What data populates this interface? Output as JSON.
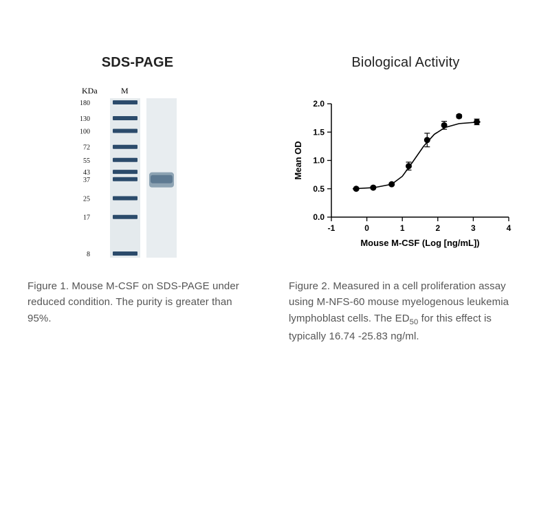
{
  "left": {
    "panel_title": "SDS-PAGE",
    "gel": {
      "kda_header": "KDa",
      "lane_header": "M",
      "markers": [
        180,
        130,
        100,
        72,
        55,
        43,
        37,
        25,
        17,
        8
      ],
      "marker_color": "#2b4b6b",
      "band_y": 37,
      "aspect_width": 170,
      "aspect_height": 260,
      "font_label_pt": 10
    },
    "caption_pre": "Figure 1. Mouse M-CSF on SDS-PAGE under reduced condition. The purity is greater than 95%."
  },
  "right": {
    "panel_title": "Biological Activity",
    "chart": {
      "type": "line",
      "xlabel": "Mouse M-CSF (Log [ng/mL])",
      "ylabel": "Mean OD",
      "xlim": [
        -1,
        4
      ],
      "ylim": [
        0.0,
        2.0
      ],
      "xtick_step": 1,
      "ytick_step": 0.5,
      "tick_font_pt": 12,
      "label_font_pt": 13,
      "label_font_weight": "bold",
      "line_color": "#000000",
      "marker_color": "#000000",
      "marker_size": 4.5,
      "line_width": 1.6,
      "background_color": "#ffffff",
      "axis_color": "#000000",
      "points": [
        {
          "x": -0.3,
          "y": 0.5,
          "err": 0.02
        },
        {
          "x": 0.18,
          "y": 0.52,
          "err": 0.02
        },
        {
          "x": 0.7,
          "y": 0.58,
          "err": 0.02
        },
        {
          "x": 1.18,
          "y": 0.9,
          "err": 0.07
        },
        {
          "x": 1.7,
          "y": 1.36,
          "err": 0.12
        },
        {
          "x": 2.18,
          "y": 1.62,
          "err": 0.07
        },
        {
          "x": 2.6,
          "y": 1.78,
          "err": 0.03
        },
        {
          "x": 3.1,
          "y": 1.68,
          "err": 0.05
        }
      ],
      "curve": [
        {
          "x": -0.4,
          "y": 0.5
        },
        {
          "x": 0.2,
          "y": 0.52
        },
        {
          "x": 0.7,
          "y": 0.58
        },
        {
          "x": 1.0,
          "y": 0.72
        },
        {
          "x": 1.3,
          "y": 0.98
        },
        {
          "x": 1.6,
          "y": 1.25
        },
        {
          "x": 1.9,
          "y": 1.46
        },
        {
          "x": 2.2,
          "y": 1.58
        },
        {
          "x": 2.6,
          "y": 1.65
        },
        {
          "x": 3.2,
          "y": 1.68
        }
      ]
    },
    "caption_pre": "Figure 2. Measured in a cell proliferation assay using M-NFS-60 mouse myelogenous leukemia lymphoblast cells. The ED",
    "caption_sub": "50",
    "caption_post": " for this effect is typically 16.74 -25.83 ng/ml."
  }
}
